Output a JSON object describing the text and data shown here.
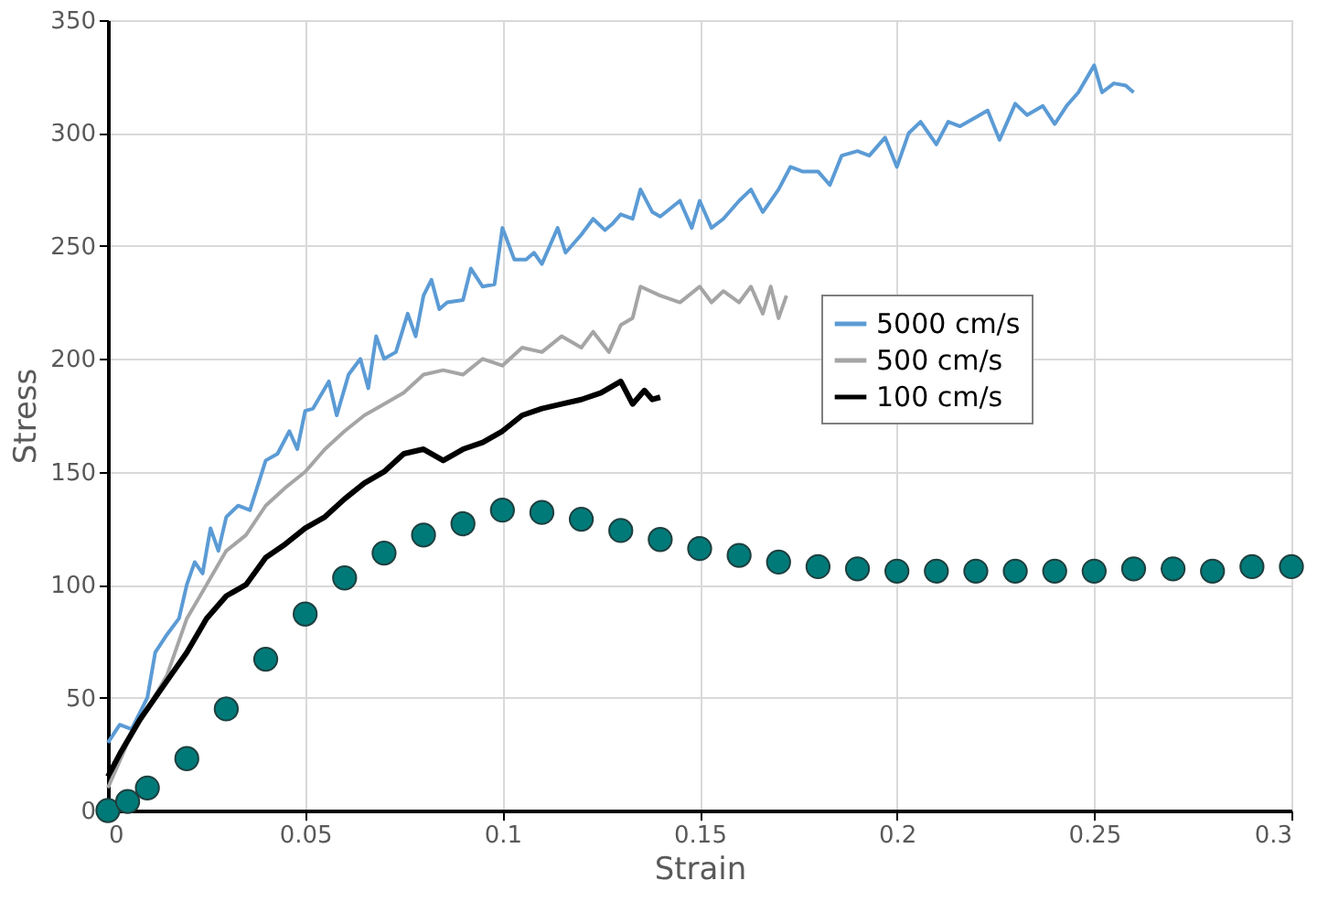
{
  "chart_data": {
    "type": "line",
    "xlabel": "Strain",
    "ylabel": "Stress",
    "xlim": [
      0,
      0.3
    ],
    "ylim": [
      0,
      350
    ],
    "xticks": [
      0,
      0.05,
      0.1,
      0.15,
      0.2,
      0.25,
      0.3
    ],
    "yticks": [
      0,
      50,
      100,
      150,
      200,
      250,
      300,
      350
    ],
    "grid": true,
    "legend": "right",
    "series": [
      {
        "name": "5000 cm/s",
        "color": "#5b9bd5",
        "x": [
          0,
          0.003,
          0.006,
          0.01,
          0.012,
          0.015,
          0.018,
          0.02,
          0.022,
          0.024,
          0.026,
          0.028,
          0.03,
          0.033,
          0.036,
          0.04,
          0.043,
          0.046,
          0.048,
          0.05,
          0.052,
          0.056,
          0.058,
          0.061,
          0.064,
          0.066,
          0.068,
          0.07,
          0.073,
          0.076,
          0.078,
          0.08,
          0.082,
          0.084,
          0.086,
          0.09,
          0.092,
          0.095,
          0.098,
          0.1,
          0.103,
          0.106,
          0.108,
          0.11,
          0.114,
          0.116,
          0.12,
          0.123,
          0.126,
          0.128,
          0.13,
          0.133,
          0.135,
          0.138,
          0.14,
          0.145,
          0.148,
          0.15,
          0.153,
          0.156,
          0.16,
          0.163,
          0.166,
          0.17,
          0.173,
          0.176,
          0.18,
          0.183,
          0.186,
          0.19,
          0.193,
          0.197,
          0.2,
          0.203,
          0.206,
          0.21,
          0.213,
          0.216,
          0.22,
          0.223,
          0.226,
          0.23,
          0.233,
          0.237,
          0.24,
          0.243,
          0.246,
          0.25,
          0.252,
          0.255,
          0.258,
          0.26
        ],
        "values": [
          30,
          38,
          36,
          50,
          70,
          78,
          85,
          100,
          110,
          105,
          125,
          115,
          130,
          135,
          133,
          155,
          158,
          168,
          160,
          177,
          178,
          190,
          175,
          193,
          200,
          187,
          210,
          200,
          203,
          220,
          210,
          228,
          235,
          222,
          225,
          226,
          240,
          232,
          233,
          258,
          244,
          244,
          247,
          242,
          258,
          247,
          255,
          262,
          257,
          260,
          264,
          262,
          275,
          265,
          263,
          270,
          258,
          270,
          258,
          262,
          270,
          275,
          265,
          275,
          285,
          283,
          283,
          277,
          290,
          292,
          290,
          298,
          285,
          300,
          305,
          295,
          305,
          303,
          307,
          310,
          297,
          313,
          308,
          312,
          304,
          312,
          318,
          330,
          318,
          322,
          321,
          318
        ]
      },
      {
        "color": "#007a78",
        "type": "scatter",
        "marker": "circle",
        "x": [
          0,
          0.005,
          0.01,
          0.02,
          0.03,
          0.04,
          0.05,
          0.06,
          0.07,
          0.08,
          0.09,
          0.1,
          0.11,
          0.12,
          0.13,
          0.14,
          0.15,
          0.16,
          0.17,
          0.18,
          0.19,
          0.2,
          0.21,
          0.22,
          0.23,
          0.24,
          0.25,
          0.26,
          0.27,
          0.28,
          0.29,
          0.3
        ],
        "values": [
          0,
          4,
          10,
          23,
          45,
          67,
          87,
          103,
          114,
          122,
          127,
          133,
          132,
          129,
          124,
          120,
          116,
          113,
          110,
          108,
          107,
          106,
          106,
          106,
          106,
          106,
          106,
          107,
          107,
          106,
          108,
          108
        ]
      },
      {
        "name": "500 cm/s",
        "color": "#a5a5a5",
        "x": [
          0,
          0.005,
          0.01,
          0.015,
          0.02,
          0.025,
          0.03,
          0.035,
          0.04,
          0.045,
          0.05,
          0.055,
          0.06,
          0.065,
          0.07,
          0.075,
          0.08,
          0.085,
          0.09,
          0.095,
          0.1,
          0.105,
          0.11,
          0.115,
          0.12,
          0.123,
          0.127,
          0.13,
          0.133,
          0.135,
          0.14,
          0.145,
          0.15,
          0.153,
          0.156,
          0.16,
          0.163,
          0.166,
          0.168,
          0.17,
          0.172
        ],
        "values": [
          10,
          30,
          45,
          60,
          85,
          100,
          115,
          122,
          135,
          143,
          150,
          160,
          168,
          175,
          180,
          185,
          193,
          195,
          193,
          200,
          197,
          205,
          203,
          210,
          205,
          212,
          203,
          215,
          218,
          232,
          228,
          225,
          232,
          225,
          230,
          225,
          232,
          220,
          232,
          218,
          228
        ]
      },
      {
        "name": "100 cm/s",
        "color": "#000000",
        "x": [
          0,
          0.003,
          0.008,
          0.012,
          0.016,
          0.02,
          0.025,
          0.03,
          0.035,
          0.04,
          0.045,
          0.05,
          0.055,
          0.06,
          0.065,
          0.07,
          0.075,
          0.08,
          0.085,
          0.09,
          0.095,
          0.1,
          0.105,
          0.11,
          0.115,
          0.12,
          0.125,
          0.13,
          0.133,
          0.136,
          0.138,
          0.14
        ],
        "values": [
          15,
          25,
          40,
          50,
          60,
          70,
          85,
          95,
          100,
          112,
          118,
          125,
          130,
          138,
          145,
          150,
          158,
          160,
          155,
          160,
          163,
          168,
          175,
          178,
          180,
          182,
          185,
          190,
          180,
          186,
          182,
          183
        ]
      }
    ]
  }
}
